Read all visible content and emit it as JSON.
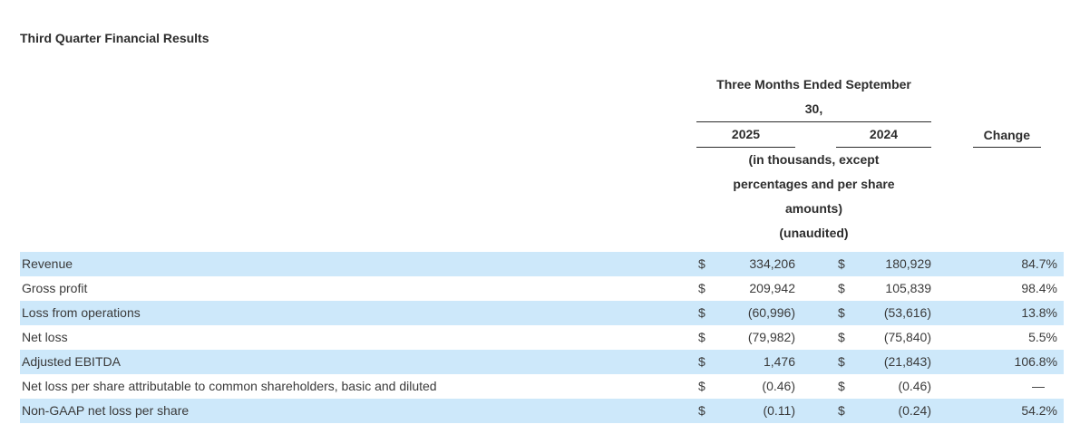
{
  "title": "Third Quarter Financial Results",
  "table": {
    "period_header": {
      "line1": "Three Months Ended September",
      "line2": "30,"
    },
    "columns": {
      "y2025": "2025",
      "y2024": "2024",
      "change": "Change"
    },
    "subnotes": [
      "(in thousands, except",
      "percentages and per share",
      "amounts)",
      "(unaudited)"
    ],
    "currency_symbol": "$",
    "rows": [
      {
        "label": "Revenue",
        "v2025": "334,206",
        "v2024": "180,929",
        "change": "84.7%"
      },
      {
        "label": "Gross profit",
        "v2025": "209,942",
        "v2024": "105,839",
        "change": "98.4%"
      },
      {
        "label": "Loss from operations",
        "v2025": "(60,996)",
        "v2024": "(53,616)",
        "change": "13.8%"
      },
      {
        "label": "Net loss",
        "v2025": "(79,982)",
        "v2024": "(75,840)",
        "change": "5.5%"
      },
      {
        "label": "Adjusted EBITDA",
        "v2025": "1,476",
        "v2024": "(21,843)",
        "change": "106.8%"
      },
      {
        "label": "Net loss per share attributable to common shareholders, basic and diluted",
        "v2025": "(0.46)",
        "v2024": "(0.46)",
        "change": "—"
      },
      {
        "label": "Non-GAAP net loss per share",
        "v2025": "(0.11)",
        "v2024": "(0.24)",
        "change": "54.2%"
      }
    ]
  },
  "colors": {
    "background": "#ffffff",
    "row_highlight": "#cde8fa",
    "body_text": "#3a3a3a",
    "heading_text": "#2d2d2d",
    "rule": "#2b2b2b"
  }
}
